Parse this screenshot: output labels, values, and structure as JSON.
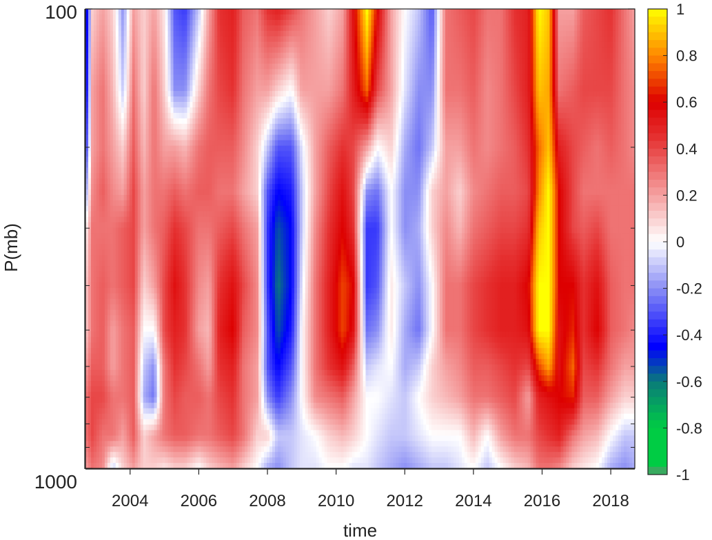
{
  "chart_data": {
    "type": "heatmap",
    "title": "",
    "xlabel": "time",
    "ylabel": "P(mb)",
    "xlim": [
      2002.7,
      2018.7
    ],
    "x_ticks": [
      "2004",
      "2006",
      "2008",
      "2010",
      "2012",
      "2014",
      "2016",
      "2018"
    ],
    "x_tick_values": [
      2004,
      2006,
      2008,
      2010,
      2012,
      2014,
      2016,
      2018
    ],
    "y_scale": "log",
    "ylim": [
      100,
      1000
    ],
    "y_tick_labels": [
      "100",
      "1000"
    ],
    "y_minor_ticks": [
      200,
      300,
      400,
      500,
      600,
      700,
      800,
      900
    ],
    "colorbar": {
      "range": [
        -1,
        1
      ],
      "ticks": [
        "1",
        "0.8",
        "0.6",
        "0.4",
        "0.2",
        "0",
        "-0.2",
        "-0.4",
        "-0.6",
        "-0.8",
        "-1"
      ],
      "tick_values": [
        1,
        0.8,
        0.6,
        0.4,
        0.2,
        0,
        -0.2,
        -0.4,
        -0.6,
        -0.8,
        -1
      ],
      "stops": [
        {
          "v": -1.0,
          "color": "#808080"
        },
        {
          "v": -0.97,
          "color": "#00cc44"
        },
        {
          "v": -0.8,
          "color": "#00cc44"
        },
        {
          "v": -0.6,
          "color": "#0a7a7a"
        },
        {
          "v": -0.45,
          "color": "#0000ff"
        },
        {
          "v": -0.2,
          "color": "#8a8ef5"
        },
        {
          "v": 0.0,
          "color": "#ffffff"
        },
        {
          "v": 0.2,
          "color": "#f5a0a0"
        },
        {
          "v": 0.45,
          "color": "#e53030"
        },
        {
          "v": 0.6,
          "color": "#dd0000"
        },
        {
          "v": 0.8,
          "color": "#ff8800"
        },
        {
          "v": 1.0,
          "color": "#ffff00"
        }
      ]
    },
    "pressure_levels": [
      100,
      150,
      200,
      250,
      300,
      400,
      500,
      600,
      700,
      850,
      1000
    ],
    "columns": [
      {
        "t": 2002.7,
        "v": [
          -0.6,
          -0.55,
          -0.4,
          -0.2,
          0.0,
          0.1,
          0.1,
          0.2,
          0.3,
          0.3,
          0.2
        ]
      },
      {
        "t": 2002.9,
        "v": [
          0.1,
          0.2,
          0.2,
          0.25,
          0.3,
          0.3,
          0.3,
          0.35,
          0.4,
          0.4,
          0.3
        ]
      },
      {
        "t": 2003.2,
        "v": [
          0.2,
          0.3,
          0.3,
          0.35,
          0.3,
          0.35,
          0.35,
          0.35,
          0.4,
          0.3,
          0.25
        ]
      },
      {
        "t": 2003.5,
        "v": [
          0.1,
          0.15,
          0.2,
          0.25,
          0.3,
          0.3,
          0.2,
          0.2,
          0.3,
          0.3,
          -0.1
        ]
      },
      {
        "t": 2003.8,
        "v": [
          -0.2,
          -0.1,
          0.1,
          0.2,
          0.35,
          0.35,
          0.3,
          0.3,
          0.3,
          0.2,
          0.1
        ]
      },
      {
        "t": 2004.1,
        "v": [
          0.2,
          0.3,
          0.35,
          0.4,
          0.4,
          0.4,
          0.35,
          0.35,
          0.35,
          0.35,
          0.2
        ]
      },
      {
        "t": 2004.4,
        "v": [
          0.1,
          0.1,
          0.15,
          0.2,
          0.2,
          0.1,
          0.0,
          -0.1,
          -0.15,
          0.1,
          0.1
        ]
      },
      {
        "t": 2004.7,
        "v": [
          0.2,
          0.3,
          0.3,
          0.3,
          0.3,
          0.2,
          0.0,
          -0.2,
          -0.25,
          0.2,
          0.1
        ]
      },
      {
        "t": 2005.0,
        "v": [
          0.05,
          0.1,
          0.2,
          0.3,
          0.35,
          0.4,
          0.4,
          0.3,
          0.3,
          0.3,
          0.05
        ]
      },
      {
        "t": 2005.3,
        "v": [
          -0.3,
          -0.2,
          0.2,
          0.35,
          0.45,
          0.55,
          0.5,
          0.45,
          0.4,
          0.35,
          0.1
        ]
      },
      {
        "t": 2005.6,
        "v": [
          -0.35,
          -0.2,
          0.15,
          0.3,
          0.4,
          0.45,
          0.45,
          0.4,
          0.35,
          0.35,
          0.1
        ]
      },
      {
        "t": 2006.0,
        "v": [
          -0.1,
          0.1,
          0.3,
          0.35,
          0.3,
          0.25,
          0.2,
          0.3,
          0.35,
          0.3,
          0.0
        ]
      },
      {
        "t": 2006.3,
        "v": [
          0.2,
          0.3,
          0.35,
          0.35,
          0.3,
          0.2,
          0.15,
          0.2,
          0.3,
          0.3,
          0.1
        ]
      },
      {
        "t": 2006.6,
        "v": [
          0.45,
          0.4,
          0.35,
          0.3,
          0.35,
          0.45,
          0.5,
          0.45,
          0.4,
          0.35,
          0.15
        ]
      },
      {
        "t": 2007.0,
        "v": [
          0.5,
          0.45,
          0.35,
          0.3,
          0.4,
          0.55,
          0.6,
          0.5,
          0.45,
          0.4,
          0.2
        ]
      },
      {
        "t": 2007.3,
        "v": [
          0.35,
          0.3,
          0.25,
          0.2,
          0.3,
          0.4,
          0.35,
          0.3,
          0.3,
          0.3,
          0.1
        ]
      },
      {
        "t": 2007.7,
        "v": [
          0.3,
          0.2,
          0.1,
          0.1,
          0.2,
          0.25,
          0.25,
          0.2,
          0.2,
          0.1,
          0.0
        ]
      },
      {
        "t": 2008.0,
        "v": [
          0.45,
          0.2,
          -0.1,
          -0.3,
          -0.35,
          -0.35,
          -0.3,
          -0.3,
          -0.2,
          0.1,
          -0.15
        ]
      },
      {
        "t": 2008.3,
        "v": [
          0.5,
          0.1,
          -0.3,
          -0.45,
          -0.55,
          -0.6,
          -0.55,
          -0.45,
          -0.35,
          -0.1,
          -0.2
        ]
      },
      {
        "t": 2008.7,
        "v": [
          0.4,
          0.0,
          -0.3,
          -0.4,
          -0.45,
          -0.45,
          -0.4,
          -0.3,
          -0.2,
          -0.1,
          -0.1
        ]
      },
      {
        "t": 2009.0,
        "v": [
          0.3,
          0.2,
          -0.05,
          -0.1,
          -0.1,
          -0.05,
          0.0,
          0.0,
          0.0,
          -0.05,
          -0.05
        ]
      },
      {
        "t": 2009.4,
        "v": [
          0.2,
          0.2,
          0.2,
          0.2,
          0.25,
          0.3,
          0.3,
          0.3,
          0.25,
          0.0,
          -0.05
        ]
      },
      {
        "t": 2009.8,
        "v": [
          0.1,
          0.2,
          0.35,
          0.4,
          0.45,
          0.5,
          0.5,
          0.45,
          0.3,
          0.1,
          0.0
        ]
      },
      {
        "t": 2010.2,
        "v": [
          0.2,
          0.3,
          0.45,
          0.55,
          0.6,
          0.7,
          0.7,
          0.55,
          0.35,
          0.15,
          0.0
        ]
      },
      {
        "t": 2010.5,
        "v": [
          0.55,
          0.5,
          0.4,
          0.4,
          0.45,
          0.6,
          0.55,
          0.35,
          0.2,
          0.1,
          -0.05
        ]
      },
      {
        "t": 2010.9,
        "v": [
          1.0,
          0.75,
          0.2,
          -0.2,
          -0.35,
          -0.35,
          -0.25,
          -0.1,
          0.0,
          0.0,
          -0.05
        ]
      },
      {
        "t": 2011.2,
        "v": [
          0.6,
          0.4,
          0.0,
          -0.25,
          -0.35,
          -0.3,
          -0.2,
          -0.05,
          0.0,
          -0.05,
          -0.1
        ]
      },
      {
        "t": 2011.6,
        "v": [
          0.2,
          0.2,
          0.1,
          0.0,
          0.0,
          0.05,
          0.05,
          0.0,
          -0.05,
          -0.1,
          -0.15
        ]
      },
      {
        "t": 2012.0,
        "v": [
          0.0,
          -0.05,
          -0.15,
          -0.2,
          -0.2,
          -0.1,
          -0.15,
          -0.15,
          -0.1,
          -0.1,
          -0.2
        ]
      },
      {
        "t": 2012.4,
        "v": [
          -0.1,
          -0.2,
          -0.25,
          -0.2,
          -0.15,
          -0.2,
          -0.25,
          -0.1,
          0.0,
          -0.05,
          -0.15
        ]
      },
      {
        "t": 2012.8,
        "v": [
          -0.3,
          -0.2,
          -0.1,
          0.1,
          0.1,
          0.0,
          0.0,
          0.1,
          0.1,
          0.0,
          -0.1
        ]
      },
      {
        "t": 2013.2,
        "v": [
          0.3,
          0.3,
          0.2,
          0.2,
          0.25,
          0.3,
          0.3,
          0.2,
          0.15,
          0.0,
          -0.1
        ]
      },
      {
        "t": 2013.6,
        "v": [
          0.35,
          0.3,
          0.2,
          0.1,
          0.15,
          0.3,
          0.3,
          0.25,
          0.2,
          0.0,
          -0.05
        ]
      },
      {
        "t": 2014.0,
        "v": [
          0.4,
          0.35,
          0.3,
          0.25,
          0.3,
          0.4,
          0.4,
          0.35,
          0.3,
          0.15,
          0.0
        ]
      },
      {
        "t": 2014.4,
        "v": [
          0.3,
          0.25,
          0.25,
          0.3,
          0.35,
          0.45,
          0.45,
          0.35,
          0.3,
          0.0,
          -0.1
        ]
      },
      {
        "t": 2014.8,
        "v": [
          0.3,
          0.3,
          0.3,
          0.35,
          0.4,
          0.5,
          0.5,
          0.4,
          0.35,
          0.2,
          0.0
        ]
      },
      {
        "t": 2015.2,
        "v": [
          0.45,
          0.4,
          0.35,
          0.35,
          0.4,
          0.5,
          0.5,
          0.45,
          0.4,
          0.3,
          0.1
        ]
      },
      {
        "t": 2015.6,
        "v": [
          0.5,
          0.5,
          0.45,
          0.4,
          0.45,
          0.6,
          0.55,
          0.4,
          0.2,
          0.3,
          0.15
        ]
      },
      {
        "t": 2015.9,
        "v": [
          1.0,
          0.9,
          0.75,
          0.8,
          0.9,
          1.0,
          1.0,
          0.7,
          0.5,
          0.4,
          0.3
        ]
      },
      {
        "t": 2016.2,
        "v": [
          0.9,
          0.85,
          0.9,
          1.0,
          1.0,
          1.0,
          1.0,
          0.85,
          0.55,
          0.45,
          0.3
        ]
      },
      {
        "t": 2016.5,
        "v": [
          0.2,
          0.3,
          0.5,
          0.6,
          0.6,
          0.6,
          0.55,
          0.55,
          0.6,
          0.5,
          0.25
        ]
      },
      {
        "t": 2016.9,
        "v": [
          0.2,
          0.35,
          0.4,
          0.4,
          0.4,
          0.6,
          0.65,
          0.75,
          0.65,
          0.3,
          0.1
        ]
      },
      {
        "t": 2017.2,
        "v": [
          0.35,
          0.4,
          0.35,
          0.3,
          0.35,
          0.45,
          0.45,
          0.4,
          0.35,
          0.2,
          0.05
        ]
      },
      {
        "t": 2017.6,
        "v": [
          0.4,
          0.4,
          0.3,
          0.3,
          0.4,
          0.55,
          0.6,
          0.45,
          0.35,
          0.15,
          0.0
        ]
      },
      {
        "t": 2018.0,
        "v": [
          0.45,
          0.4,
          0.35,
          0.3,
          0.3,
          0.35,
          0.35,
          0.3,
          0.2,
          0.0,
          -0.15
        ]
      },
      {
        "t": 2018.4,
        "v": [
          0.3,
          0.3,
          0.3,
          0.3,
          0.3,
          0.3,
          0.3,
          0.2,
          0.1,
          -0.1,
          -0.2
        ]
      },
      {
        "t": 2018.7,
        "v": [
          0.2,
          0.25,
          0.25,
          0.3,
          0.3,
          0.3,
          0.25,
          0.2,
          0.1,
          -0.1,
          -0.15
        ]
      }
    ]
  }
}
